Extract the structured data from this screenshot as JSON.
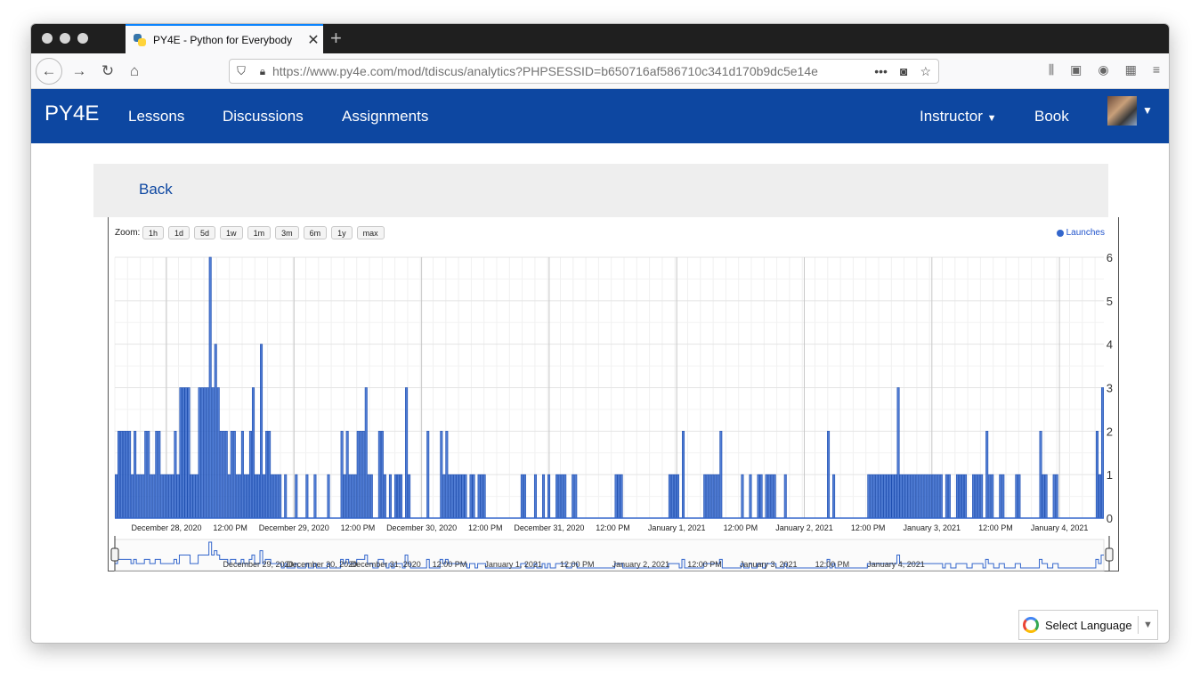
{
  "browser": {
    "tab_title": "PY4E - Python for Everybody",
    "new_tab_icon": "plus-icon",
    "url": "https://www.py4e.com/mod/tdiscus/analytics?PHPSESSID=b650716af586710c341d170b9dc5e14e",
    "url_more": "•••"
  },
  "site": {
    "brand": "PY4E",
    "menu": [
      "Lessons",
      "Discussions",
      "Assignments"
    ],
    "instructor": "Instructor",
    "book": "Book"
  },
  "back_label": "Back",
  "translate": {
    "label": "Select Language"
  },
  "chart_data": {
    "type": "bar",
    "zoom_label": "Zoom:",
    "zoom_buttons": [
      "1h",
      "1d",
      "5d",
      "1w",
      "1m",
      "3m",
      "6m",
      "1y",
      "max"
    ],
    "legend": [
      "Launches"
    ],
    "legend_position": "top-right",
    "color": "#3366cc",
    "grid": true,
    "ylim": [
      0,
      6
    ],
    "yticks": [
      "0",
      "1",
      "2",
      "3",
      "4",
      "5",
      "6"
    ],
    "x_start": "December 27, 2020 8:00 PM",
    "x_end": "January 4, 2021 10:00 PM",
    "x_tick_labels": [
      "December 28, 2020",
      "12:00 PM",
      "December 29, 2020",
      "12:00 PM",
      "December 30, 2020",
      "12:00 PM",
      "December 31, 2020",
      "12:00 PM",
      "January 1, 2021",
      "12:00 PM",
      "January 2, 2021",
      "12:00 PM",
      "January 3, 2021",
      "12:00 PM",
      "January 4, 2021"
    ],
    "navigator_labels": [
      "December 29, 2020",
      "December 30, 2020",
      "December 31, 2020",
      "12:00 PM",
      "January 1, 2021",
      "12:00 PM",
      "January 2, 2021",
      "12:00 PM",
      "January 3, 2021",
      "12:00 PM",
      "January 4, 2021"
    ],
    "values": [
      1,
      2,
      2,
      2,
      2,
      2,
      1,
      2,
      1,
      1,
      1,
      2,
      2,
      1,
      1,
      2,
      2,
      1,
      1,
      1,
      1,
      1,
      2,
      1,
      3,
      3,
      3,
      3,
      1,
      1,
      1,
      3,
      3,
      3,
      3,
      6,
      3,
      4,
      3,
      2,
      2,
      2,
      1,
      2,
      2,
      1,
      1,
      2,
      1,
      1,
      2,
      3,
      1,
      1,
      4,
      1,
      2,
      2,
      1,
      1,
      1,
      1,
      0,
      1,
      0,
      0,
      0,
      1,
      0,
      0,
      0,
      1,
      0,
      0,
      1,
      0,
      0,
      0,
      0,
      1,
      0,
      0,
      0,
      0,
      2,
      1,
      2,
      1,
      1,
      1,
      2,
      2,
      2,
      3,
      1,
      1,
      0,
      0,
      2,
      2,
      1,
      0,
      1,
      0,
      1,
      1,
      1,
      0,
      3,
      1,
      0,
      0,
      0,
      0,
      0,
      0,
      2,
      0,
      0,
      0,
      0,
      2,
      1,
      2,
      1,
      1,
      1,
      1,
      1,
      1,
      1,
      0,
      1,
      1,
      0,
      1,
      1,
      1,
      0,
      0,
      0,
      0,
      0,
      0,
      0,
      0,
      0,
      0,
      0,
      0,
      0,
      1,
      1,
      0,
      0,
      0,
      1,
      0,
      0,
      1,
      0,
      1,
      0,
      0,
      1,
      1,
      1,
      1,
      0,
      0,
      1,
      1,
      0,
      0,
      0,
      0,
      0,
      0,
      0,
      0,
      0,
      0,
      0,
      0,
      0,
      0,
      1,
      1,
      1,
      0,
      0,
      0,
      0,
      0,
      0,
      0,
      0,
      0,
      0,
      0,
      0,
      0,
      0,
      0,
      0,
      0,
      1,
      1,
      1,
      1,
      0,
      2,
      0,
      0,
      0,
      0,
      0,
      0,
      0,
      1,
      1,
      1,
      1,
      1,
      1,
      2,
      0,
      0,
      0,
      0,
      0,
      0,
      0,
      1,
      0,
      0,
      1,
      0,
      0,
      1,
      1,
      0,
      1,
      1,
      1,
      1,
      0,
      0,
      0,
      1,
      0,
      0,
      0,
      0,
      0,
      0,
      0,
      0,
      0,
      0,
      0,
      0,
      0,
      0,
      0,
      2,
      0,
      1,
      0,
      0,
      0,
      0,
      0,
      0,
      0,
      0,
      0,
      0,
      0,
      0,
      1,
      1,
      1,
      1,
      1,
      1,
      1,
      1,
      1,
      1,
      1,
      3,
      1,
      1,
      1,
      1,
      1,
      1,
      1,
      1,
      1,
      1,
      1,
      1,
      1,
      1,
      1,
      1,
      0,
      1,
      1,
      0,
      0,
      1,
      1,
      1,
      1,
      0,
      0,
      1,
      1,
      1,
      1,
      0,
      2,
      1,
      1,
      0,
      0,
      1,
      1,
      0,
      0,
      0,
      0,
      1,
      1,
      0,
      0,
      0,
      0,
      0,
      0,
      0,
      2,
      1,
      1,
      0,
      0,
      1,
      1,
      0,
      0,
      0,
      0,
      0,
      0,
      0,
      0,
      0,
      0,
      0,
      0,
      0,
      0,
      2,
      1,
      3
    ]
  }
}
